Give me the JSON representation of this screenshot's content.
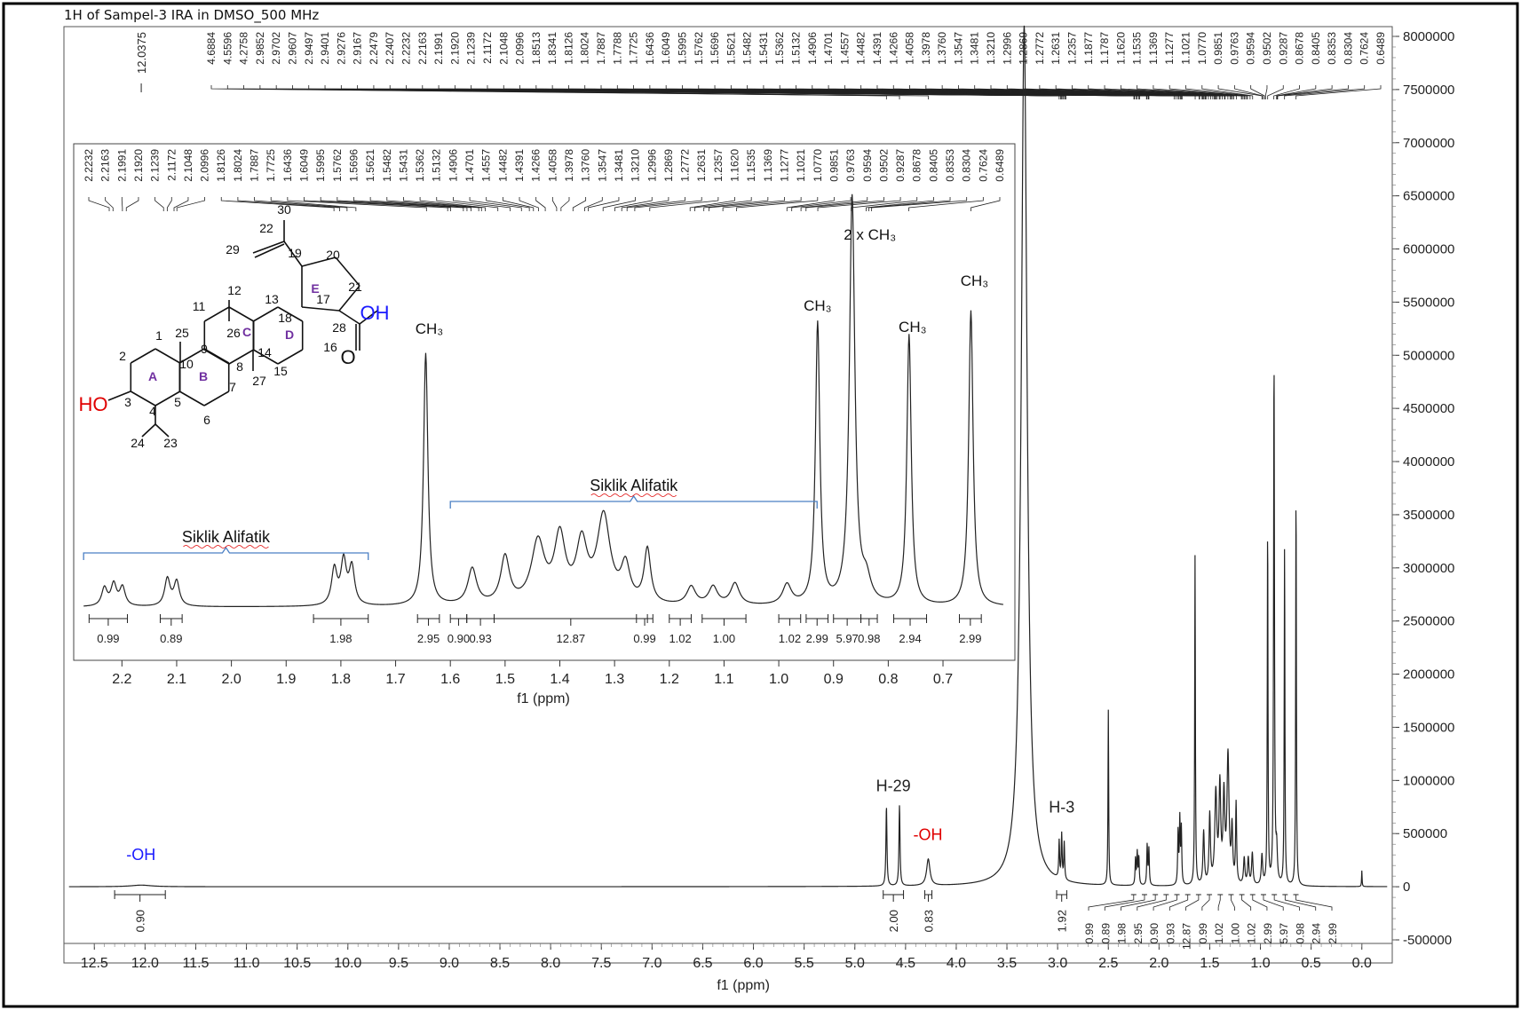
{
  "title": "1H of Sampel-3 IRA in DMSO_500 MHz",
  "chart_data": [
    {
      "type": "line",
      "name": "main-spectrum",
      "xlabel": "f1 (ppm)",
      "ylabel": "",
      "xlim": [
        12.8,
        -0.3
      ],
      "ylim": [
        -500000,
        8000000
      ],
      "x_ticks": [
        "12.5",
        "12.0",
        "11.5",
        "11.0",
        "10.5",
        "10.0",
        "9.5",
        "9.0",
        "8.5",
        "8.0",
        "7.5",
        "7.0",
        "6.5",
        "6.0",
        "5.5",
        "5.0",
        "4.5",
        "4.0",
        "3.5",
        "3.0",
        "2.5",
        "2.0",
        "1.5",
        "1.0",
        "0.5",
        "0.0"
      ],
      "y_ticks": [
        "8000000",
        "7500000",
        "7000000",
        "6500000",
        "6000000",
        "5500000",
        "5000000",
        "4500000",
        "4000000",
        "3500000",
        "3000000",
        "2500000",
        "2000000",
        "1500000",
        "1000000",
        "500000",
        "0",
        "-500000"
      ],
      "peaks": [
        {
          "ppm": 12.0375,
          "height": 15000,
          "width": 0.12
        },
        {
          "ppm": 4.6884,
          "height": 750000,
          "width": 0.006
        },
        {
          "ppm": 4.5596,
          "height": 760000,
          "width": 0.006
        },
        {
          "ppm": 4.2758,
          "height": 250000,
          "width": 0.02
        },
        {
          "ppm": 3.33,
          "height": 8100000,
          "width": 0.035
        },
        {
          "ppm": 2.985,
          "height": 350000,
          "width": 0.005
        },
        {
          "ppm": 2.96,
          "height": 420000,
          "width": 0.005
        },
        {
          "ppm": 2.935,
          "height": 350000,
          "width": 0.005
        },
        {
          "ppm": 2.5,
          "height": 1650000,
          "width": 0.004
        },
        {
          "ppm": 2.232,
          "height": 250000,
          "width": 0.005
        },
        {
          "ppm": 2.215,
          "height": 300000,
          "width": 0.005
        },
        {
          "ppm": 2.199,
          "height": 260000,
          "width": 0.005
        },
        {
          "ppm": 2.117,
          "height": 380000,
          "width": 0.005
        },
        {
          "ppm": 2.1,
          "height": 340000,
          "width": 0.005
        },
        {
          "ppm": 1.812,
          "height": 500000,
          "width": 0.005
        },
        {
          "ppm": 1.795,
          "height": 600000,
          "width": 0.005
        },
        {
          "ppm": 1.78,
          "height": 520000,
          "width": 0.005
        },
        {
          "ppm": 1.645,
          "height": 3100000,
          "width": 0.004
        },
        {
          "ppm": 1.56,
          "height": 500000,
          "width": 0.008
        },
        {
          "ppm": 1.5,
          "height": 650000,
          "width": 0.008
        },
        {
          "ppm": 1.44,
          "height": 850000,
          "width": 0.012
        },
        {
          "ppm": 1.4,
          "height": 900000,
          "width": 0.01
        },
        {
          "ppm": 1.36,
          "height": 800000,
          "width": 0.01
        },
        {
          "ppm": 1.32,
          "height": 1200000,
          "width": 0.012
        },
        {
          "ppm": 1.28,
          "height": 500000,
          "width": 0.008
        },
        {
          "ppm": 1.24,
          "height": 750000,
          "width": 0.006
        },
        {
          "ppm": 1.16,
          "height": 250000,
          "width": 0.008
        },
        {
          "ppm": 1.12,
          "height": 250000,
          "width": 0.008
        },
        {
          "ppm": 1.08,
          "height": 300000,
          "width": 0.008
        },
        {
          "ppm": 0.985,
          "height": 280000,
          "width": 0.008
        },
        {
          "ppm": 0.929,
          "height": 3400000,
          "width": 0.004
        },
        {
          "ppm": 0.866,
          "height": 4950000,
          "width": 0.005
        },
        {
          "ppm": 0.84,
          "height": 300000,
          "width": 0.008
        },
        {
          "ppm": 0.762,
          "height": 3200000,
          "width": 0.004
        },
        {
          "ppm": 0.649,
          "height": 3750000,
          "width": 0.004
        },
        {
          "ppm": 0.0,
          "height": 150000,
          "width": 0.003
        }
      ],
      "annotations": [
        {
          "text": "-OH",
          "ppm": 12.04,
          "y": 200000,
          "color": "#1a1aff"
        },
        {
          "text": "H-29",
          "ppm": 4.62,
          "y": 850000,
          "color": "#222"
        },
        {
          "text": "-OH",
          "ppm": 4.28,
          "y": 390000,
          "color": "#e00000"
        },
        {
          "text": "H-3",
          "ppm": 2.96,
          "y": 650000,
          "color": "#222"
        }
      ],
      "integrals": [
        {
          "from": 12.3,
          "to": 11.8,
          "value": "0.90"
        },
        {
          "from": 4.72,
          "to": 4.52,
          "value": "2.00"
        },
        {
          "from": 4.31,
          "to": 4.24,
          "value": "0.83"
        },
        {
          "from": 3.01,
          "to": 2.91,
          "value": "1.92"
        }
      ],
      "integral_cluster_labels": [
        "0.99",
        "0.89",
        "1.98",
        "2.95",
        "0.90",
        "0.93",
        "12.87",
        "0.99",
        "1.02",
        "1.00",
        "1.02",
        "2.99",
        "5.97",
        "0.98",
        "2.94",
        "2.99"
      ],
      "peak_labels_main": [
        "12.0375"
      ],
      "peak_labels_group": [
        "4.6884",
        "4.5596",
        "4.2758",
        "2.9852",
        "2.9702",
        "2.9607",
        "2.9497",
        "2.9401",
        "2.9276",
        "2.9167",
        "2.2479",
        "2.2407",
        "2.2232",
        "2.2163",
        "2.1991",
        "2.1920",
        "2.1239",
        "2.1172",
        "2.1048",
        "2.0996",
        "1.8513",
        "1.8341",
        "1.8126",
        "1.8024",
        "1.7887",
        "1.7788",
        "1.7725",
        "1.6436",
        "1.6049",
        "1.5995",
        "1.5762",
        "1.5696",
        "1.5621",
        "1.5482",
        "1.5431",
        "1.5362",
        "1.5132",
        "1.4906",
        "1.4701",
        "1.4557",
        "1.4482",
        "1.4391",
        "1.4266",
        "1.4058",
        "1.3978",
        "1.3760",
        "1.3547",
        "1.3481",
        "1.3210",
        "1.2996",
        "1.2869",
        "1.2772",
        "1.2631",
        "1.2357",
        "1.1877",
        "1.1787",
        "1.1620",
        "1.1535",
        "1.1369",
        "1.1277",
        "1.1021",
        "1.0770",
        "0.9851",
        "0.9763",
        "0.9594",
        "0.9502",
        "0.9287",
        "0.8678",
        "0.8405",
        "0.8353",
        "0.8304",
        "0.7624",
        "0.6489"
      ]
    },
    {
      "type": "line",
      "name": "inset-spectrum",
      "xlabel": "f1 (ppm)",
      "xlim": [
        2.28,
        0.58
      ],
      "x_ticks": [
        "2.2",
        "2.1",
        "2.0",
        "1.9",
        "1.8",
        "1.7",
        "1.6",
        "1.5",
        "1.4",
        "1.3",
        "1.2",
        "1.1",
        "1.0",
        "0.9",
        "0.8",
        "0.7"
      ],
      "peak_labels": [
        "2.2232",
        "2.2163",
        "2.1991",
        "2.1920",
        "2.1239",
        "2.1172",
        "2.1048",
        "2.0996",
        "1.8126",
        "1.8024",
        "1.7887",
        "1.7725",
        "1.6436",
        "1.6049",
        "1.5995",
        "1.5762",
        "1.5696",
        "1.5621",
        "1.5482",
        "1.5431",
        "1.5362",
        "1.5132",
        "1.4906",
        "1.4701",
        "1.4557",
        "1.4482",
        "1.4391",
        "1.4266",
        "1.4058",
        "1.3978",
        "1.3760",
        "1.3547",
        "1.3481",
        "1.3210",
        "1.2996",
        "1.2869",
        "1.2772",
        "1.2631",
        "1.2357",
        "1.1620",
        "1.1535",
        "1.1369",
        "1.1277",
        "1.1021",
        "1.0770",
        "0.9851",
        "0.9763",
        "0.9594",
        "0.9502",
        "0.9287",
        "0.8678",
        "0.8405",
        "0.8353",
        "0.8304",
        "0.7624",
        "0.6489"
      ],
      "annotations": [
        {
          "text": "CH₃",
          "ppm": 1.645,
          "where": "left-peak"
        },
        {
          "text": "CH₃",
          "ppm": 0.929,
          "where": "peak"
        },
        {
          "text": "2 x CH₃",
          "ppm": 0.866,
          "where": "peak"
        },
        {
          "text": "CH₃",
          "ppm": 0.762,
          "where": "peak"
        },
        {
          "text": "CH₃",
          "ppm": 0.649,
          "where": "peak"
        }
      ],
      "brackets": [
        {
          "text": "Siklik Alifatik",
          "from": 2.27,
          "to": 1.75
        },
        {
          "text": "Siklik Alifatik",
          "from": 1.6,
          "to": 0.93
        }
      ],
      "integrals": [
        {
          "from": 2.26,
          "to": 2.19,
          "value": "0.99"
        },
        {
          "from": 2.13,
          "to": 2.09,
          "value": "0.89"
        },
        {
          "from": 1.85,
          "to": 1.75,
          "value": "1.98"
        },
        {
          "from": 1.66,
          "to": 1.62,
          "value": "2.95"
        },
        {
          "from": 1.6,
          "to": 1.57,
          "value": "0.90"
        },
        {
          "from": 1.57,
          "to": 1.52,
          "value": "0.93"
        },
        {
          "from": 1.52,
          "to": 1.24,
          "value": "12.87"
        },
        {
          "from": 1.26,
          "to": 1.23,
          "value": "0.99"
        },
        {
          "from": 1.2,
          "to": 1.16,
          "value": "1.02"
        },
        {
          "from": 1.14,
          "to": 1.06,
          "value": "1.00"
        },
        {
          "from": 1.0,
          "to": 0.96,
          "value": "1.02"
        },
        {
          "from": 0.95,
          "to": 0.91,
          "value": "2.99"
        },
        {
          "from": 0.9,
          "to": 0.85,
          "value": "5.97"
        },
        {
          "from": 0.85,
          "to": 0.82,
          "value": "0.98"
        },
        {
          "from": 0.79,
          "to": 0.73,
          "value": "2.94"
        },
        {
          "from": 0.67,
          "to": 0.63,
          "value": "2.99"
        }
      ]
    }
  ],
  "structure": {
    "labels": [
      "30",
      "22",
      "29",
      "19",
      "20",
      "E",
      "21",
      "12",
      "11",
      "13",
      "18",
      "17",
      "28",
      "OH",
      "O",
      "1",
      "25",
      "26",
      "C",
      "D",
      "14",
      "16",
      "2",
      "9",
      "A",
      "10",
      "B",
      "8",
      "15",
      "27",
      "3",
      "4",
      "5",
      "7",
      "6",
      "24",
      "23",
      "HO"
    ],
    "colors": {
      "OH": "#1a1aff",
      "HO": "#e00000",
      "ring": "#7030a0"
    }
  }
}
